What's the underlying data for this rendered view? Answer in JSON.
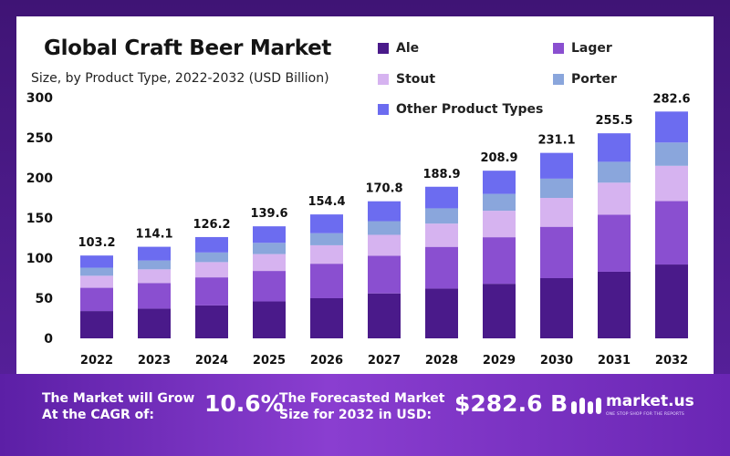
{
  "chart_data": {
    "type": "bar",
    "stacked": true,
    "title": "Global Craft Beer Market",
    "subtitle": "Size, by Product Type, 2022-2032 (USD Billion)",
    "categories": [
      "2022",
      "2023",
      "2024",
      "2025",
      "2026",
      "2027",
      "2028",
      "2029",
      "2030",
      "2031",
      "2032"
    ],
    "totals": [
      "103.2",
      "114.1",
      "126.2",
      "139.6",
      "154.4",
      "170.8",
      "188.9",
      "208.9",
      "231.1",
      "255.5",
      "282.6"
    ],
    "series": [
      {
        "name": "Ale",
        "color": "#4a1a8a",
        "values": [
          34,
          37,
          41,
          46,
          50,
          56,
          62,
          68,
          75,
          83,
          92
        ]
      },
      {
        "name": "Lager",
        "color": "#8a4fd0",
        "values": [
          29,
          32,
          35,
          38,
          43,
          47,
          52,
          58,
          64,
          71,
          79
        ]
      },
      {
        "name": "Stout",
        "color": "#d6b3f0",
        "values": [
          15,
          17,
          19,
          21,
          23,
          26,
          29,
          33,
          36,
          40,
          44
        ]
      },
      {
        "name": "Porter",
        "color": "#8aa6dc",
        "values": [
          10,
          11,
          12,
          14,
          15,
          17,
          19,
          21,
          24,
          26,
          29
        ]
      },
      {
        "name": "Other Product Types",
        "color": "#6c6cf0",
        "values": [
          15.2,
          17.1,
          19.2,
          20.6,
          23.4,
          24.8,
          26.9,
          28.9,
          32.1,
          35.5,
          38.6
        ]
      }
    ],
    "yticks": [
      "0",
      "50",
      "100",
      "150",
      "200",
      "250",
      "300"
    ],
    "ylim": [
      0,
      300
    ],
    "grid": false,
    "legend": "top-right"
  },
  "banner": {
    "cagr_label_line1": "The Market will Grow",
    "cagr_label_line2": "At the CAGR of:",
    "cagr_value": "10.6%",
    "forecast_label_line1": "The Forecasted Market",
    "forecast_label_line2": "Size for 2032 in USD:",
    "forecast_value": "$282.6 B",
    "brand": "market.us",
    "brand_tagline": "ONE STOP SHOP FOR THE REPORTS"
  }
}
